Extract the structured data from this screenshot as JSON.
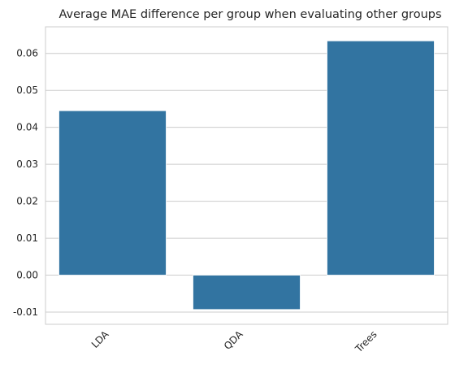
{
  "chart_data": {
    "type": "bar",
    "title": "Average MAE difference per group when evaluating other groups",
    "xlabel": "",
    "ylabel": "",
    "categories": [
      "LDA",
      "QDA",
      "Trees"
    ],
    "values": [
      0.0445,
      -0.0093,
      0.0634
    ],
    "ylim": [
      -0.0133,
      0.0672
    ],
    "yticks": [
      -0.01,
      0.0,
      0.01,
      0.02,
      0.03,
      0.04,
      0.05,
      0.06
    ],
    "ytick_labels": [
      "-0.01",
      "0.00",
      "0.01",
      "0.02",
      "0.03",
      "0.04",
      "0.05",
      "0.06"
    ],
    "grid": "horizontal",
    "bar_color": "#3274a1",
    "grid_color": "#cccccc",
    "axes_edge_color": "#cccccc"
  }
}
